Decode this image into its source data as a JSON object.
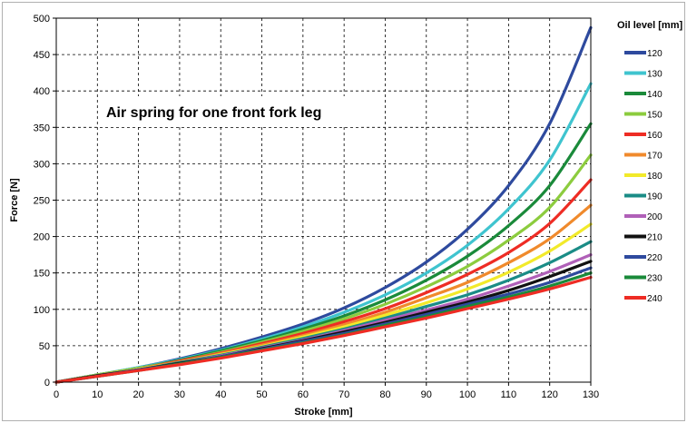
{
  "chart_data": {
    "type": "line",
    "title": "",
    "annotation": "Air spring for one front fork leg",
    "xlabel": "Stroke [mm]",
    "ylabel": "Force [N]",
    "xlim": [
      0,
      130
    ],
    "ylim": [
      0,
      500
    ],
    "xticks": [
      0,
      10,
      20,
      30,
      40,
      50,
      60,
      70,
      80,
      90,
      100,
      110,
      120,
      130
    ],
    "yticks": [
      0,
      50,
      100,
      150,
      200,
      250,
      300,
      350,
      400,
      450,
      500
    ],
    "grid": true,
    "legend_title": "Oil level [mm]",
    "legend_position": "right",
    "x": [
      0,
      10,
      20,
      30,
      40,
      50,
      60,
      70,
      80,
      90,
      100,
      110,
      120,
      130
    ],
    "series": [
      {
        "name": "120",
        "color": "#2e4a9e",
        "values": [
          0,
          10,
          20,
          32,
          46,
          62,
          80,
          102,
          130,
          165,
          210,
          270,
          355,
          487
        ]
      },
      {
        "name": "130",
        "color": "#3fc4cf",
        "values": [
          0,
          10,
          20,
          31,
          44,
          59,
          76,
          96,
          120,
          150,
          188,
          238,
          305,
          410
        ]
      },
      {
        "name": "140",
        "color": "#1a8a3a",
        "values": [
          0,
          10,
          19,
          30,
          43,
          57,
          73,
          91,
          113,
          140,
          173,
          215,
          270,
          355
        ]
      },
      {
        "name": "150",
        "color": "#8ccc3e",
        "values": [
          0,
          10,
          19,
          29,
          41,
          55,
          70,
          87,
          107,
          131,
          159,
          195,
          240,
          312
        ]
      },
      {
        "name": "160",
        "color": "#ee2c24",
        "values": [
          0,
          9,
          18,
          29,
          40,
          53,
          67,
          83,
          101,
          123,
          148,
          178,
          218,
          278
        ]
      },
      {
        "name": "170",
        "color": "#f08a2c",
        "values": [
          0,
          9,
          18,
          28,
          39,
          51,
          64,
          79,
          96,
          116,
          137,
          164,
          197,
          243
        ]
      },
      {
        "name": "180",
        "color": "#f2ea2a",
        "values": [
          0,
          9,
          18,
          27,
          38,
          49,
          62,
          76,
          92,
          109,
          128,
          151,
          180,
          217
        ]
      },
      {
        "name": "190",
        "color": "#1a8c86",
        "values": [
          0,
          9,
          17,
          27,
          37,
          48,
          60,
          73,
          88,
          104,
          120,
          140,
          164,
          193
        ]
      },
      {
        "name": "200",
        "color": "#b060b8",
        "values": [
          0,
          9,
          17,
          26,
          36,
          47,
          58,
          71,
          85,
          99,
          114,
          132,
          152,
          175
        ]
      },
      {
        "name": "210",
        "color": "#111111",
        "values": [
          0,
          9,
          17,
          26,
          35,
          46,
          57,
          69,
          82,
          96,
          110,
          126,
          145,
          166
        ]
      },
      {
        "name": "220",
        "color": "#2e4a9e",
        "values": [
          0,
          8,
          17,
          25,
          35,
          45,
          56,
          67,
          80,
          93,
          107,
          121,
          137,
          157
        ]
      },
      {
        "name": "230",
        "color": "#1a8a3a",
        "values": [
          0,
          8,
          16,
          25,
          34,
          44,
          54,
          65,
          78,
          90,
          104,
          117,
          132,
          150
        ]
      },
      {
        "name": "240",
        "color": "#ee2c24",
        "values": [
          0,
          8,
          16,
          24,
          33,
          43,
          53,
          64,
          76,
          88,
          101,
          114,
          128,
          144
        ]
      }
    ]
  }
}
